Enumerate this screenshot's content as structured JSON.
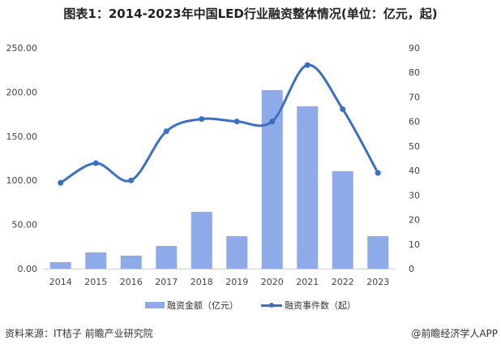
{
  "chart_data": {
    "type": "bar+line",
    "title": "图表1：2014-2023年中国LED行业融资整体情况(单位：亿元，起)",
    "categories": [
      "2014",
      "2015",
      "2016",
      "2017",
      "2018",
      "2019",
      "2020",
      "2021",
      "2022",
      "2023"
    ],
    "series": [
      {
        "name": "融资金额（亿元）",
        "type": "bar",
        "axis": "left",
        "color": "#8faae8",
        "values": [
          7.4,
          18.4,
          14.7,
          25.7,
          64.3,
          36.8,
          202.2,
          183.8,
          110.3,
          36.8
        ]
      },
      {
        "name": "融资事件数（起）",
        "type": "line",
        "axis": "right",
        "color": "#3a6fc4",
        "values": [
          35,
          43,
          36,
          56,
          61,
          60,
          60,
          83,
          65,
          39
        ]
      }
    ],
    "left_axis": {
      "ylim": [
        0,
        250
      ],
      "ticks": [
        "0.00",
        "50.00",
        "100.00",
        "150.00",
        "200.00",
        "250.00"
      ]
    },
    "right_axis": {
      "ylim": [
        0,
        90
      ],
      "ticks": [
        "0",
        "10",
        "20",
        "30",
        "40",
        "50",
        "60",
        "70",
        "80",
        "90"
      ]
    },
    "grid": false,
    "legend": "bottom"
  },
  "footer": {
    "source": "资料来源：IT桔子 前瞻产业研究院",
    "brand": "@前瞻经济学人APP"
  }
}
